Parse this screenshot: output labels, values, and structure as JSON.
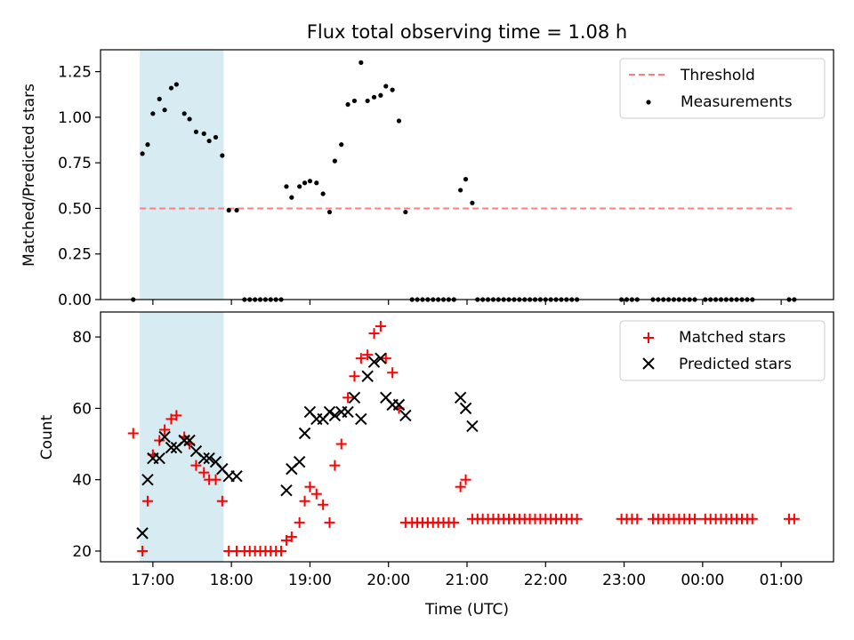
{
  "figure": {
    "title": "Flux total observing time = 1.08 h",
    "xlabel": "Time (UTC)",
    "highlight_color": "#add8e6"
  },
  "top_panel": {
    "ylabel": "Matched/Predicted stars",
    "ylim": [
      0,
      1.37
    ],
    "yticks": [
      "0.00",
      "0.25",
      "0.50",
      "0.75",
      "1.00",
      "1.25"
    ],
    "ytick_values": [
      0,
      0.25,
      0.5,
      0.75,
      1.0,
      1.25
    ],
    "legend": {
      "threshold_label": "Threshold",
      "measurements_label": "Measurements"
    }
  },
  "bottom_panel": {
    "ylabel": "Count",
    "ylim": [
      17,
      87
    ],
    "yticks": [
      "20",
      "40",
      "60",
      "80"
    ],
    "ytick_values": [
      20,
      40,
      60,
      80
    ],
    "legend": {
      "matched_label": "Matched stars",
      "predicted_label": "Predicted stars"
    }
  },
  "chart_data": [
    {
      "type": "scatter",
      "title": "Flux total observing time = 1.08 h",
      "xlabel": "Time (UTC)",
      "ylabel": "Matched/Predicted stars",
      "xlim": [
        "16:20",
        "01:40"
      ],
      "ylim": [
        0,
        1.37
      ],
      "x_tick_labels": [
        "17:00",
        "18:00",
        "19:00",
        "20:00",
        "21:00",
        "22:00",
        "23:00",
        "00:00",
        "01:00"
      ],
      "highlight_span": [
        "16:50",
        "17:54"
      ],
      "threshold": {
        "name": "Threshold",
        "y": 0.5,
        "x_range": [
          "16:50",
          "01:10"
        ],
        "color": "#ff7f7f",
        "style": "dashed"
      },
      "series": [
        {
          "name": "Measurements",
          "color": "#000000",
          "points": [
            [
              "16:45",
              0.0
            ],
            [
              "16:52",
              0.8
            ],
            [
              "16:56",
              0.85
            ],
            [
              "17:00",
              1.02
            ],
            [
              "17:05",
              1.1
            ],
            [
              "17:09",
              1.04
            ],
            [
              "17:14",
              1.16
            ],
            [
              "17:18",
              1.18
            ],
            [
              "17:24",
              1.02
            ],
            [
              "17:28",
              0.99
            ],
            [
              "17:33",
              0.92
            ],
            [
              "17:39",
              0.91
            ],
            [
              "17:43",
              0.87
            ],
            [
              "17:48",
              0.89
            ],
            [
              "17:53",
              0.79
            ],
            [
              "17:58",
              0.49
            ],
            [
              "18:04",
              0.49
            ],
            [
              "18:10",
              0.0
            ],
            [
              "18:14",
              0.0
            ],
            [
              "18:18",
              0.0
            ],
            [
              "18:22",
              0.0
            ],
            [
              "18:26",
              0.0
            ],
            [
              "18:30",
              0.0
            ],
            [
              "18:34",
              0.0
            ],
            [
              "18:38",
              0.0
            ],
            [
              "18:42",
              0.62
            ],
            [
              "18:46",
              0.56
            ],
            [
              "18:52",
              0.62
            ],
            [
              "18:56",
              0.64
            ],
            [
              "19:00",
              0.65
            ],
            [
              "19:05",
              0.64
            ],
            [
              "19:10",
              0.58
            ],
            [
              "19:15",
              0.48
            ],
            [
              "19:19",
              0.76
            ],
            [
              "19:24",
              0.85
            ],
            [
              "19:29",
              1.07
            ],
            [
              "19:34",
              1.09
            ],
            [
              "19:39",
              1.3
            ],
            [
              "19:44",
              1.09
            ],
            [
              "19:49",
              1.11
            ],
            [
              "19:54",
              1.12
            ],
            [
              "19:58",
              1.17
            ],
            [
              "20:03",
              1.15
            ],
            [
              "20:08",
              0.98
            ],
            [
              "20:13",
              0.48
            ],
            [
              "20:18",
              0.0
            ],
            [
              "20:22",
              0.0
            ],
            [
              "20:26",
              0.0
            ],
            [
              "20:30",
              0.0
            ],
            [
              "20:34",
              0.0
            ],
            [
              "20:38",
              0.0
            ],
            [
              "20:42",
              0.0
            ],
            [
              "20:46",
              0.0
            ],
            [
              "20:50",
              0.0
            ],
            [
              "20:55",
              0.6
            ],
            [
              "20:59",
              0.66
            ],
            [
              "21:04",
              0.53
            ],
            [
              "21:08",
              0.0
            ],
            [
              "21:12",
              0.0
            ],
            [
              "21:16",
              0.0
            ],
            [
              "21:20",
              0.0
            ],
            [
              "21:24",
              0.0
            ],
            [
              "21:28",
              0.0
            ],
            [
              "21:32",
              0.0
            ],
            [
              "21:36",
              0.0
            ],
            [
              "21:40",
              0.0
            ],
            [
              "21:44",
              0.0
            ],
            [
              "21:48",
              0.0
            ],
            [
              "21:52",
              0.0
            ],
            [
              "21:56",
              0.0
            ],
            [
              "22:00",
              0.0
            ],
            [
              "22:04",
              0.0
            ],
            [
              "22:08",
              0.0
            ],
            [
              "22:12",
              0.0
            ],
            [
              "22:16",
              0.0
            ],
            [
              "22:20",
              0.0
            ],
            [
              "22:24",
              0.0
            ],
            [
              "22:58",
              0.0
            ],
            [
              "23:02",
              0.0
            ],
            [
              "23:06",
              0.0
            ],
            [
              "23:10",
              0.0
            ],
            [
              "23:22",
              0.0
            ],
            [
              "23:26",
              0.0
            ],
            [
              "23:30",
              0.0
            ],
            [
              "23:34",
              0.0
            ],
            [
              "23:38",
              0.0
            ],
            [
              "23:42",
              0.0
            ],
            [
              "23:46",
              0.0
            ],
            [
              "23:50",
              0.0
            ],
            [
              "23:54",
              0.0
            ],
            [
              "00:02",
              0.0
            ],
            [
              "00:06",
              0.0
            ],
            [
              "00:10",
              0.0
            ],
            [
              "00:14",
              0.0
            ],
            [
              "00:18",
              0.0
            ],
            [
              "00:22",
              0.0
            ],
            [
              "00:26",
              0.0
            ],
            [
              "00:30",
              0.0
            ],
            [
              "00:34",
              0.0
            ],
            [
              "00:38",
              0.0
            ],
            [
              "01:06",
              0.0
            ],
            [
              "01:10",
              0.0
            ]
          ]
        }
      ]
    },
    {
      "type": "scatter",
      "xlabel": "Time (UTC)",
      "ylabel": "Count",
      "xlim": [
        "16:20",
        "01:40"
      ],
      "ylim": [
        17,
        87
      ],
      "x_tick_labels": [
        "17:00",
        "18:00",
        "19:00",
        "20:00",
        "21:00",
        "22:00",
        "23:00",
        "00:00",
        "01:00"
      ],
      "highlight_span": [
        "16:50",
        "17:54"
      ],
      "series": [
        {
          "name": "Matched stars",
          "marker": "+",
          "color": "#ff0000",
          "points": [
            [
              "16:45",
              53
            ],
            [
              "16:52",
              20
            ],
            [
              "16:56",
              34
            ],
            [
              "17:00",
              47
            ],
            [
              "17:05",
              51
            ],
            [
              "17:09",
              54
            ],
            [
              "17:14",
              57
            ],
            [
              "17:18",
              58
            ],
            [
              "17:24",
              52
            ],
            [
              "17:28",
              50
            ],
            [
              "17:33",
              44
            ],
            [
              "17:39",
              42
            ],
            [
              "17:43",
              40
            ],
            [
              "17:48",
              40
            ],
            [
              "17:53",
              34
            ],
            [
              "17:58",
              20
            ],
            [
              "18:04",
              20
            ],
            [
              "18:10",
              20
            ],
            [
              "18:14",
              20
            ],
            [
              "18:18",
              20
            ],
            [
              "18:22",
              20
            ],
            [
              "18:26",
              20
            ],
            [
              "18:30",
              20
            ],
            [
              "18:34",
              20
            ],
            [
              "18:38",
              20
            ],
            [
              "18:42",
              23
            ],
            [
              "18:46",
              24
            ],
            [
              "18:52",
              28
            ],
            [
              "18:56",
              34
            ],
            [
              "19:00",
              38
            ],
            [
              "19:05",
              36
            ],
            [
              "19:10",
              33
            ],
            [
              "19:15",
              28
            ],
            [
              "19:19",
              44
            ],
            [
              "19:24",
              50
            ],
            [
              "19:29",
              63
            ],
            [
              "19:34",
              69
            ],
            [
              "19:39",
              74
            ],
            [
              "19:44",
              75
            ],
            [
              "19:49",
              81
            ],
            [
              "19:54",
              83
            ],
            [
              "19:58",
              74
            ],
            [
              "20:03",
              70
            ],
            [
              "20:08",
              60
            ],
            [
              "20:13",
              28
            ],
            [
              "20:18",
              28
            ],
            [
              "20:22",
              28
            ],
            [
              "20:26",
              28
            ],
            [
              "20:30",
              28
            ],
            [
              "20:34",
              28
            ],
            [
              "20:38",
              28
            ],
            [
              "20:42",
              28
            ],
            [
              "20:46",
              28
            ],
            [
              "20:50",
              28
            ],
            [
              "20:55",
              38
            ],
            [
              "20:59",
              40
            ],
            [
              "21:04",
              29
            ],
            [
              "21:08",
              29
            ],
            [
              "21:12",
              29
            ],
            [
              "21:16",
              29
            ],
            [
              "21:20",
              29
            ],
            [
              "21:24",
              29
            ],
            [
              "21:28",
              29
            ],
            [
              "21:32",
              29
            ],
            [
              "21:36",
              29
            ],
            [
              "21:40",
              29
            ],
            [
              "21:44",
              29
            ],
            [
              "21:48",
              29
            ],
            [
              "21:52",
              29
            ],
            [
              "21:56",
              29
            ],
            [
              "22:00",
              29
            ],
            [
              "22:04",
              29
            ],
            [
              "22:08",
              29
            ],
            [
              "22:12",
              29
            ],
            [
              "22:16",
              29
            ],
            [
              "22:20",
              29
            ],
            [
              "22:24",
              29
            ],
            [
              "22:58",
              29
            ],
            [
              "23:02",
              29
            ],
            [
              "23:06",
              29
            ],
            [
              "23:10",
              29
            ],
            [
              "23:22",
              29
            ],
            [
              "23:26",
              29
            ],
            [
              "23:30",
              29
            ],
            [
              "23:34",
              29
            ],
            [
              "23:38",
              29
            ],
            [
              "23:42",
              29
            ],
            [
              "23:46",
              29
            ],
            [
              "23:50",
              29
            ],
            [
              "23:54",
              29
            ],
            [
              "00:02",
              29
            ],
            [
              "00:06",
              29
            ],
            [
              "00:10",
              29
            ],
            [
              "00:14",
              29
            ],
            [
              "00:18",
              29
            ],
            [
              "00:22",
              29
            ],
            [
              "00:26",
              29
            ],
            [
              "00:30",
              29
            ],
            [
              "00:34",
              29
            ],
            [
              "00:38",
              29
            ],
            [
              "01:06",
              29
            ],
            [
              "01:10",
              29
            ]
          ]
        },
        {
          "name": "Predicted stars",
          "marker": "x",
          "color": "#000000",
          "points": [
            [
              "16:52",
              25
            ],
            [
              "16:56",
              40
            ],
            [
              "17:00",
              46
            ],
            [
              "17:05",
              46
            ],
            [
              "17:09",
              52
            ],
            [
              "17:14",
              49
            ],
            [
              "17:18",
              49
            ],
            [
              "17:24",
              51
            ],
            [
              "17:28",
              51
            ],
            [
              "17:33",
              48
            ],
            [
              "17:39",
              46
            ],
            [
              "17:43",
              46
            ],
            [
              "17:48",
              45
            ],
            [
              "17:53",
              43
            ],
            [
              "17:58",
              41
            ],
            [
              "18:04",
              41
            ],
            [
              "18:42",
              37
            ],
            [
              "18:46",
              43
            ],
            [
              "18:52",
              45
            ],
            [
              "18:56",
              53
            ],
            [
              "19:00",
              59
            ],
            [
              "19:05",
              57
            ],
            [
              "19:10",
              57
            ],
            [
              "19:15",
              59
            ],
            [
              "19:19",
              58
            ],
            [
              "19:24",
              59
            ],
            [
              "19:29",
              59
            ],
            [
              "19:34",
              63
            ],
            [
              "19:39",
              57
            ],
            [
              "19:44",
              69
            ],
            [
              "19:49",
              73
            ],
            [
              "19:54",
              74
            ],
            [
              "19:58",
              63
            ],
            [
              "20:03",
              61
            ],
            [
              "20:08",
              61
            ],
            [
              "20:13",
              58
            ],
            [
              "20:55",
              63
            ],
            [
              "20:59",
              60
            ],
            [
              "21:04",
              55
            ]
          ]
        }
      ]
    }
  ]
}
